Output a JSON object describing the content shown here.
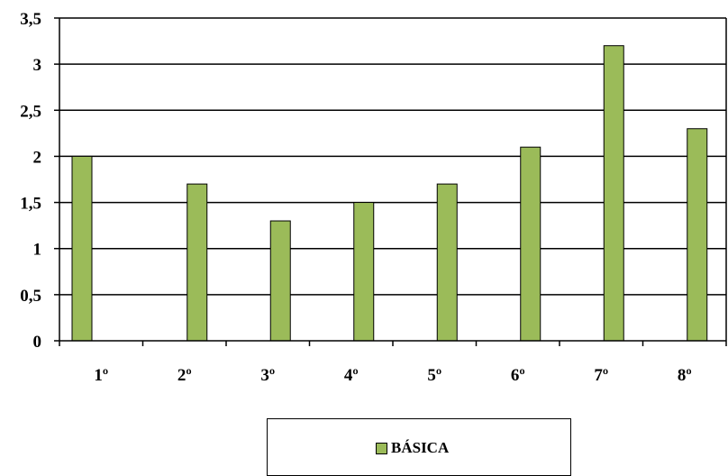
{
  "chart_data": {
    "type": "bar",
    "categories": [
      "1º",
      "2º",
      "3º",
      "4º",
      "5º",
      "6º",
      "7º",
      "8º"
    ],
    "series": [
      {
        "name": "BÁSICA",
        "values": [
          2.0,
          1.7,
          1.3,
          1.5,
          1.7,
          2.1,
          3.2,
          2.3
        ],
        "color": "#9BBB59"
      }
    ],
    "ylim": [
      0,
      3.5
    ],
    "yticks": [
      "0",
      "0,5",
      "1",
      "1,5",
      "2",
      "2,5",
      "3",
      "3,5"
    ],
    "grid": true,
    "legend_placement": "bottom"
  }
}
